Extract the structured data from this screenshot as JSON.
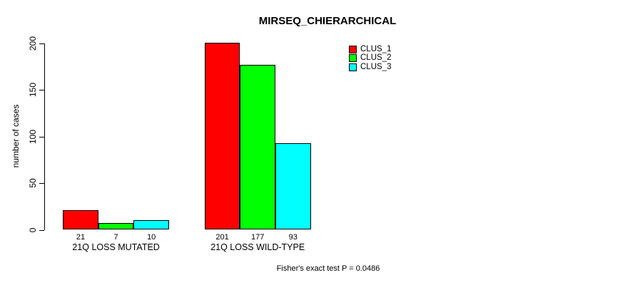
{
  "chart_data": {
    "type": "bar",
    "title": "MIRSEQ_CHIERARCHICAL",
    "ylabel": "number of cases",
    "xlabel": "",
    "categories": [
      "21Q LOSS MUTATED",
      "21Q LOSS WILD-TYPE"
    ],
    "series": [
      {
        "name": "CLUS_1",
        "color": "#ff0000",
        "values": [
          21,
          201
        ]
      },
      {
        "name": "CLUS_2",
        "color": "#00ff00",
        "values": [
          7,
          177
        ]
      },
      {
        "name": "CLUS_3",
        "color": "#00ffff",
        "values": [
          10,
          93
        ]
      }
    ],
    "yticks": [
      0,
      50,
      100,
      150,
      200
    ],
    "ylim": [
      0,
      200
    ],
    "grid": false,
    "legend_position": "top-right",
    "bar_value_labels": true,
    "annotation": "Fisher's exact test P = 0.0486"
  }
}
